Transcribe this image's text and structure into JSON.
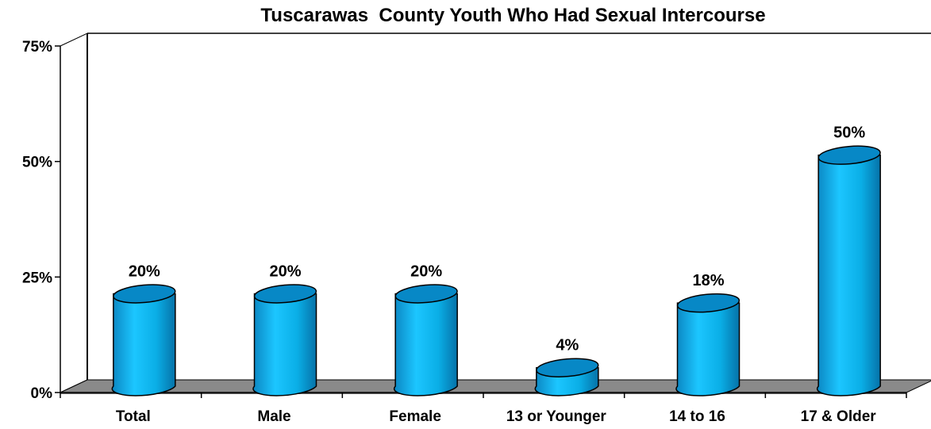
{
  "chart_data": {
    "type": "bar",
    "title": "Tuscarawas  County Youth Who Had Sexual Intercourse",
    "categories": [
      "Total",
      "Male",
      "Female",
      "13 or Younger",
      "14 to 16",
      "17 & Older"
    ],
    "values": [
      20,
      20,
      20,
      4,
      18,
      50
    ],
    "data_labels": [
      "20%",
      "20%",
      "20%",
      "4%",
      "18%",
      "50%"
    ],
    "yticks": [
      0,
      25,
      50,
      75
    ],
    "ytick_labels": [
      "0%",
      "25%",
      "50%",
      "75%"
    ],
    "ylim": [
      0,
      75
    ],
    "style": "3d-cylinder",
    "bar_color": "#0aaee6",
    "floor_color": "#8a8a8a",
    "grid": false
  }
}
